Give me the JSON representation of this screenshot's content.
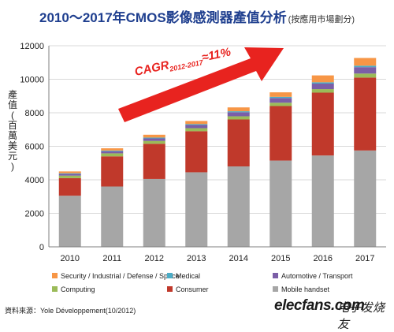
{
  "title": "2010～2017年CMOS影像感測器產值分析",
  "subtitle": "(按應用市場劃分)",
  "source": "資料來源：Yole Développement(10/2012)",
  "watermark": {
    "brand": "elecfans.com",
    "cn": "电子发烧友"
  },
  "chart_data": {
    "type": "bar",
    "stacked": true,
    "title": "2010～2017年CMOS影像感測器產值分析",
    "subtitle": "(按應用市場劃分)",
    "ylabel": "產值(百萬美元)",
    "xlabel": "",
    "ylim": [
      0,
      12000
    ],
    "yticks": [
      0,
      2000,
      4000,
      6000,
      8000,
      10000,
      12000
    ],
    "grid": true,
    "legend_position": "bottom",
    "categories": [
      "2010",
      "2011",
      "2012",
      "2013",
      "2014",
      "2015",
      "2016",
      "2017"
    ],
    "series": [
      {
        "name": "Mobile handset",
        "color": "#a6a6a6",
        "values": [
          3050,
          3600,
          4050,
          4450,
          4800,
          5150,
          5450,
          5750
        ]
      },
      {
        "name": "Consumer",
        "color": "#c0392b",
        "values": [
          1050,
          1800,
          2100,
          2450,
          2800,
          3250,
          3750,
          4350
        ]
      },
      {
        "name": "Computing",
        "color": "#9bbb59",
        "values": [
          150,
          180,
          170,
          180,
          190,
          200,
          210,
          240
        ]
      },
      {
        "name": "Automotive / Transport",
        "color": "#7b5ea7",
        "values": [
          100,
          120,
          150,
          190,
          240,
          280,
          330,
          380
        ]
      },
      {
        "name": "Medical",
        "color": "#4bacc6",
        "values": [
          40,
          45,
          50,
          55,
          60,
          70,
          80,
          90
        ]
      },
      {
        "name": "Security / Industrial / Defense / Space",
        "color": "#f79646",
        "values": [
          110,
          135,
          170,
          185,
          230,
          270,
          410,
          460
        ]
      }
    ],
    "legend_order": [
      "Security / Industrial / Defense / Space",
      "Medical",
      "Automotive / Transport",
      "Computing",
      "Consumer",
      "Mobile handset"
    ],
    "annotation": {
      "prefix": "CAGR",
      "range": "2012-2017",
      "value": "≈11%",
      "color": "#e8231f"
    }
  }
}
